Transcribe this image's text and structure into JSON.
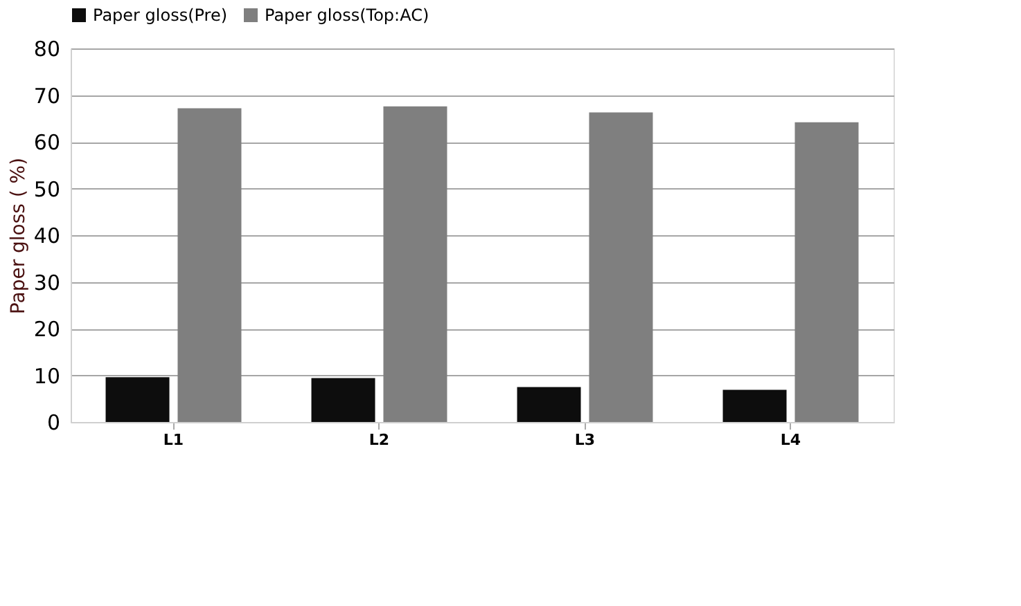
{
  "chart_data": {
    "type": "bar",
    "categories": [
      "L1",
      "L2",
      "L3",
      "L4"
    ],
    "series": [
      {
        "name": "Paper gloss(Pre)",
        "color": "#0d0d0d",
        "values": [
          9.6,
          9.4,
          7.5,
          6.9
        ]
      },
      {
        "name": "Paper gloss(Top:AC)",
        "color": "#7f7f7f",
        "values": [
          67.2,
          67.6,
          66.3,
          64.2
        ]
      }
    ],
    "ylabel": "Paper gloss ( %)",
    "ylim": [
      0,
      80
    ],
    "yticks": [
      0,
      10,
      20,
      30,
      40,
      50,
      60,
      70,
      80
    ],
    "grid": "y",
    "legend": "top"
  }
}
